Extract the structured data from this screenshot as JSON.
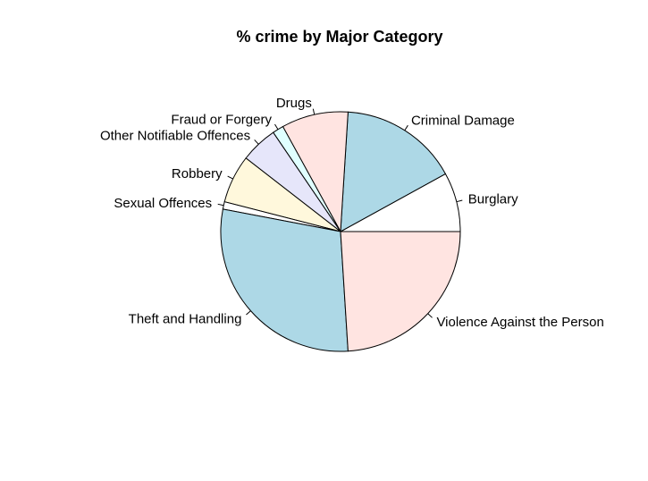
{
  "chart_data": {
    "type": "pie",
    "title": "% crime by Major Category",
    "start_angle_deg": 0,
    "direction": "counterclockwise",
    "slices": [
      {
        "label": "Burglary",
        "value": 8.0,
        "color": "#ffffff"
      },
      {
        "label": "Criminal Damage",
        "value": 16.0,
        "color": "#add8e6"
      },
      {
        "label": "Drugs",
        "value": 9.0,
        "color": "#ffe4e1"
      },
      {
        "label": "Fraud or Forgery",
        "value": 1.5,
        "color": "#e0ffff"
      },
      {
        "label": "Other Notifiable Offences",
        "value": 5.0,
        "color": "#e6e6fa"
      },
      {
        "label": "Robbery",
        "value": 6.5,
        "color": "#fff8dc"
      },
      {
        "label": "Sexual Offences",
        "value": 1.0,
        "color": "#ffffff"
      },
      {
        "label": "Theft and Handling",
        "value": 29.0,
        "color": "#add8e6"
      },
      {
        "label": "Violence Against the Person",
        "value": 24.0,
        "color": "#ffe4e1"
      }
    ]
  }
}
